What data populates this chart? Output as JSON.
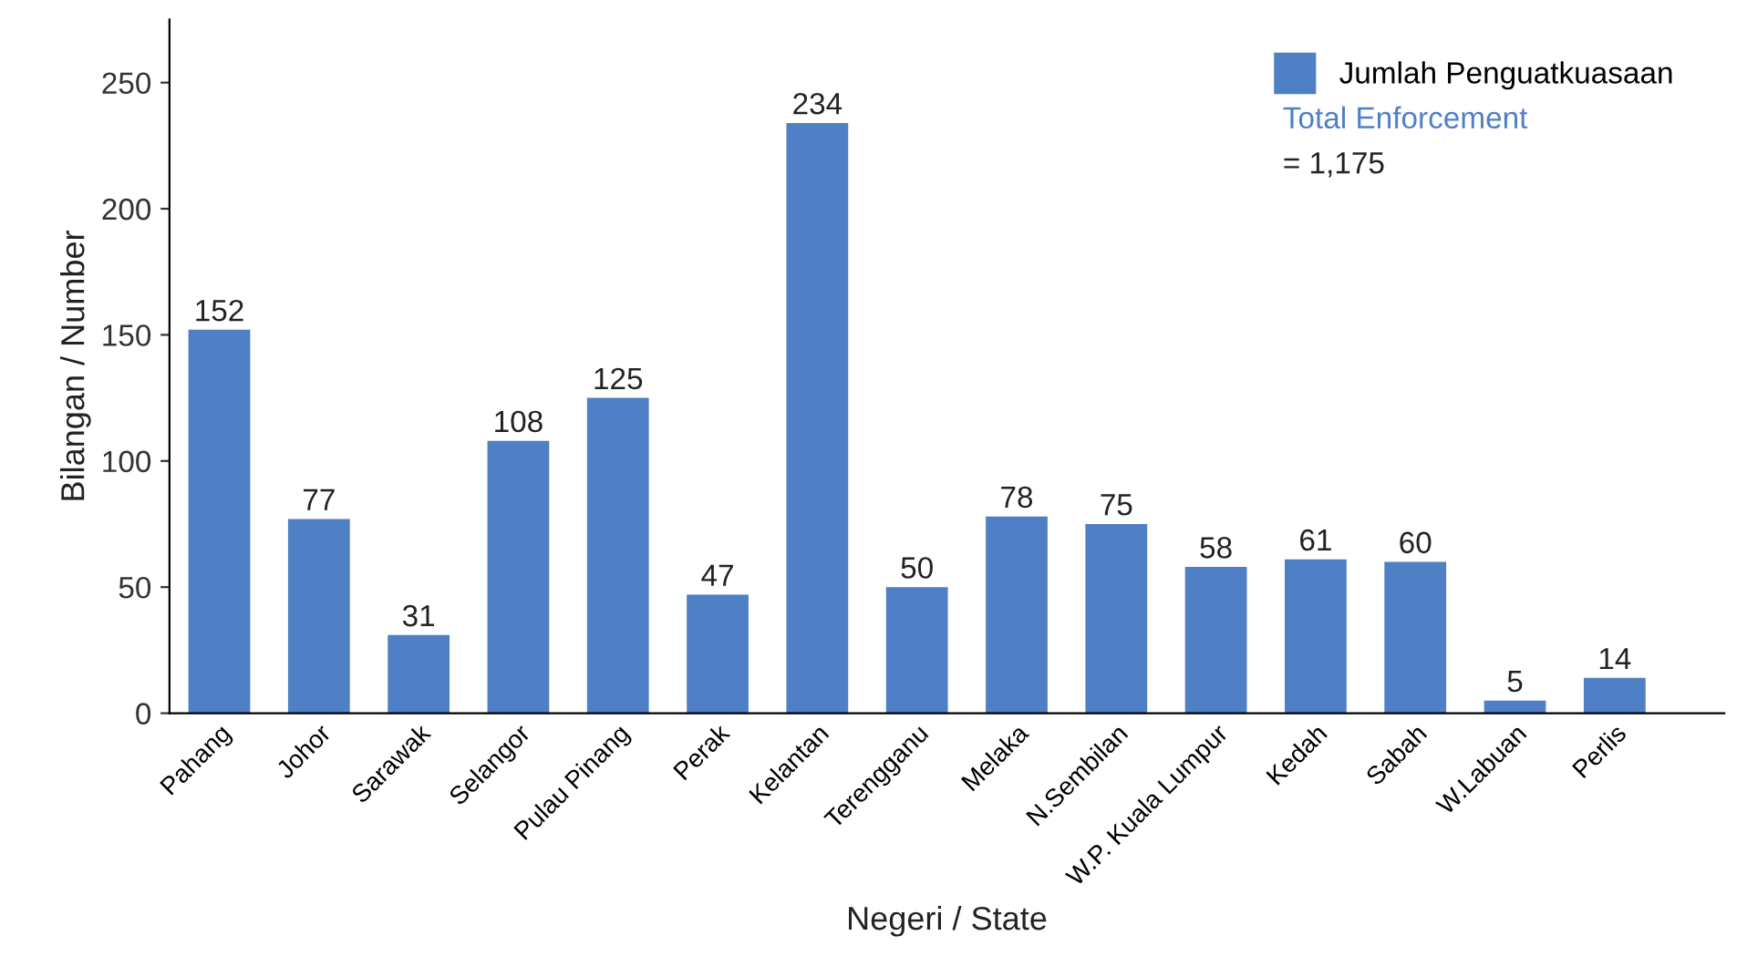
{
  "chart_data": {
    "type": "bar",
    "xlabel": "Negeri / State",
    "ylabel": "Bilangan / Number",
    "categories": [
      "Pahang",
      "Johor",
      "Sarawak",
      "Selangor",
      "Pulau Pinang",
      "Perak",
      "Kelantan",
      "Terengganu",
      "Melaka",
      "N.Sembilan",
      "W.P. Kuala Lumpur",
      "Kedah",
      "Sabah",
      "W.Labuan",
      "Perlis"
    ],
    "series": [
      {
        "name": "Jumlah Penguatkuasaan",
        "color": "#4f7fc4",
        "values": [
          152,
          77,
          31,
          108,
          125,
          47,
          234,
          50,
          78,
          75,
          58,
          61,
          60,
          5,
          14
        ]
      }
    ],
    "annotations": [
      "Total Enforcement",
      "= 1,175"
    ],
    "ylim": [
      0,
      275
    ],
    "yticks": [
      0,
      50,
      100,
      150,
      200,
      250
    ],
    "grid": false,
    "legend": "top right",
    "data_labels": true
  }
}
